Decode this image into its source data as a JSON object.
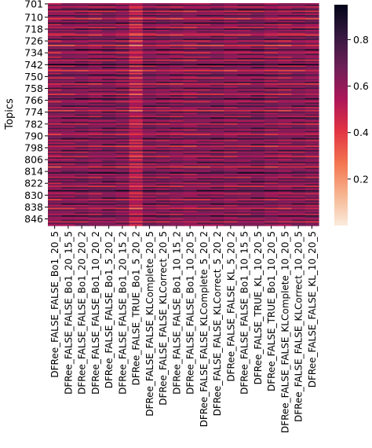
{
  "chart_data": {
    "type": "heatmap",
    "ylabel": "Topics",
    "xlabel": "",
    "title": "",
    "y_tick_labels": [
      "701",
      "710",
      "718",
      "726",
      "734",
      "742",
      "750",
      "758",
      "766",
      "774",
      "782",
      "790",
      "798",
      "806",
      "814",
      "822",
      "830",
      "838",
      "846"
    ],
    "y_tick_rows": [
      0,
      9,
      17,
      25,
      33,
      41,
      49,
      57,
      65,
      73,
      81,
      89,
      97,
      105,
      113,
      121,
      129,
      137,
      145
    ],
    "row_count": 150,
    "x_tick_labels": [
      "DFRee_FALSE_FALSE_Bo1_20_5",
      "DFRee_FALSE_FALSE_Bo1_20_15_5",
      "DFRee_FALSE_FALSE_Bo1_20_20_2",
      "DFRee_FALSE_FALSE_Bo1_10_20_2",
      "DFRee_FALSE_FALSE_Bo1_5_20_2",
      "DFRee_FALSE_FALSE_Bo1_20_15_2",
      "DFRee_FALSE_TRUE_Bo1_5_20_2",
      "DFRee_FALSE_FALSE_KLComplete_20_5",
      "DFRee_FALSE_FALSE_KLCorrect_20_5",
      "DFRee_FALSE_FALSE_Bo1_10_15_2",
      "DFRee_FALSE_FALSE_Bo1_10_20_5",
      "DFRee_FALSE_FALSE_KLComplete_5_20_2",
      "DFRee_FALSE_FALSE_KLCorrect_5_20_2",
      "DFRee_FALSE_FALSE_KL_5_20_2",
      "DFRee_FALSE_FALSE_Bo1_10_15_5",
      "DFRee_FALSE_TRUE_KL_10_20_5",
      "DFRee_FALSE_TRUE_Bo1_10_20_5",
      "DFRee_FALSE_FALSE_KLComplete_10_20_5",
      "DFRee_FALSE_FALSE_KLCorrect_10_20_5",
      "DFRee_FALSE_FALSE_KL_10_20_5"
    ],
    "colorbar": {
      "min": 0.0,
      "max": 0.95,
      "ticks": [
        "0.2",
        "0.4",
        "0.6",
        "0.8"
      ],
      "tick_values": [
        0.2,
        0.4,
        0.6,
        0.8
      ]
    },
    "colormap": "rocket_r",
    "cmap_stops": [
      "#faebdd",
      "#f6b48f",
      "#f37651",
      "#e13342",
      "#ad1759",
      "#701f57",
      "#35193e",
      "#03051a"
    ],
    "row_base_values": [
      0.55,
      0.72,
      0.48,
      0.62,
      0.8,
      0.42,
      0.68,
      0.55,
      0.74,
      0.6,
      0.38,
      0.7,
      0.58,
      0.82,
      0.5,
      0.64,
      0.45,
      0.76,
      0.58,
      0.66,
      0.52,
      0.4,
      0.72,
      0.6,
      0.78,
      0.48,
      0.62,
      0.7,
      0.36,
      0.66,
      0.54,
      0.84,
      0.58,
      0.46,
      0.7,
      0.62,
      0.52,
      0.76,
      0.44,
      0.68,
      0.58,
      0.9,
      0.5,
      0.72,
      0.6,
      0.4,
      0.66,
      0.54,
      0.8,
      0.62,
      0.48,
      0.7,
      0.56,
      0.74,
      0.42,
      0.64,
      0.58,
      0.78,
      0.5,
      0.68,
      0.62,
      0.44,
      0.72,
      0.56,
      0.82,
      0.6,
      0.48,
      0.7,
      0.62,
      0.76,
      0.52,
      0.66,
      0.4,
      0.74,
      0.58,
      0.68,
      0.5,
      0.8,
      0.62,
      0.54,
      0.72,
      0.46,
      0.66,
      0.6,
      0.76,
      0.52,
      0.7,
      0.58,
      0.44,
      0.68,
      0.62,
      0.8,
      0.5,
      0.66,
      0.56,
      0.74,
      0.42,
      0.64,
      0.58,
      0.78,
      0.5,
      0.7,
      0.6,
      0.46,
      0.72,
      0.56,
      0.62,
      0.76,
      0.52,
      0.68,
      0.4,
      0.7,
      0.58,
      0.64,
      0.82,
      0.54,
      0.66,
      0.48,
      0.72,
      0.6,
      0.76,
      0.52,
      0.68,
      0.44,
      0.7,
      0.58,
      0.84,
      0.62,
      0.5,
      0.66,
      0.56,
      0.74,
      0.46,
      0.68,
      0.6,
      0.78,
      0.52,
      0.64,
      0.42,
      0.72,
      0.58,
      0.66,
      0.5,
      0.8,
      0.62,
      0.54,
      0.7,
      0.46,
      0.68,
      0.6
    ],
    "column_offsets": [
      0.0,
      0.02,
      0.03,
      0.01,
      0.04,
      0.02,
      -0.1,
      0.03,
      0.02,
      0.01,
      0.0,
      0.02,
      0.03,
      0.01,
      0.02,
      0.04,
      0.01,
      0.0,
      0.02,
      0.01
    ]
  }
}
